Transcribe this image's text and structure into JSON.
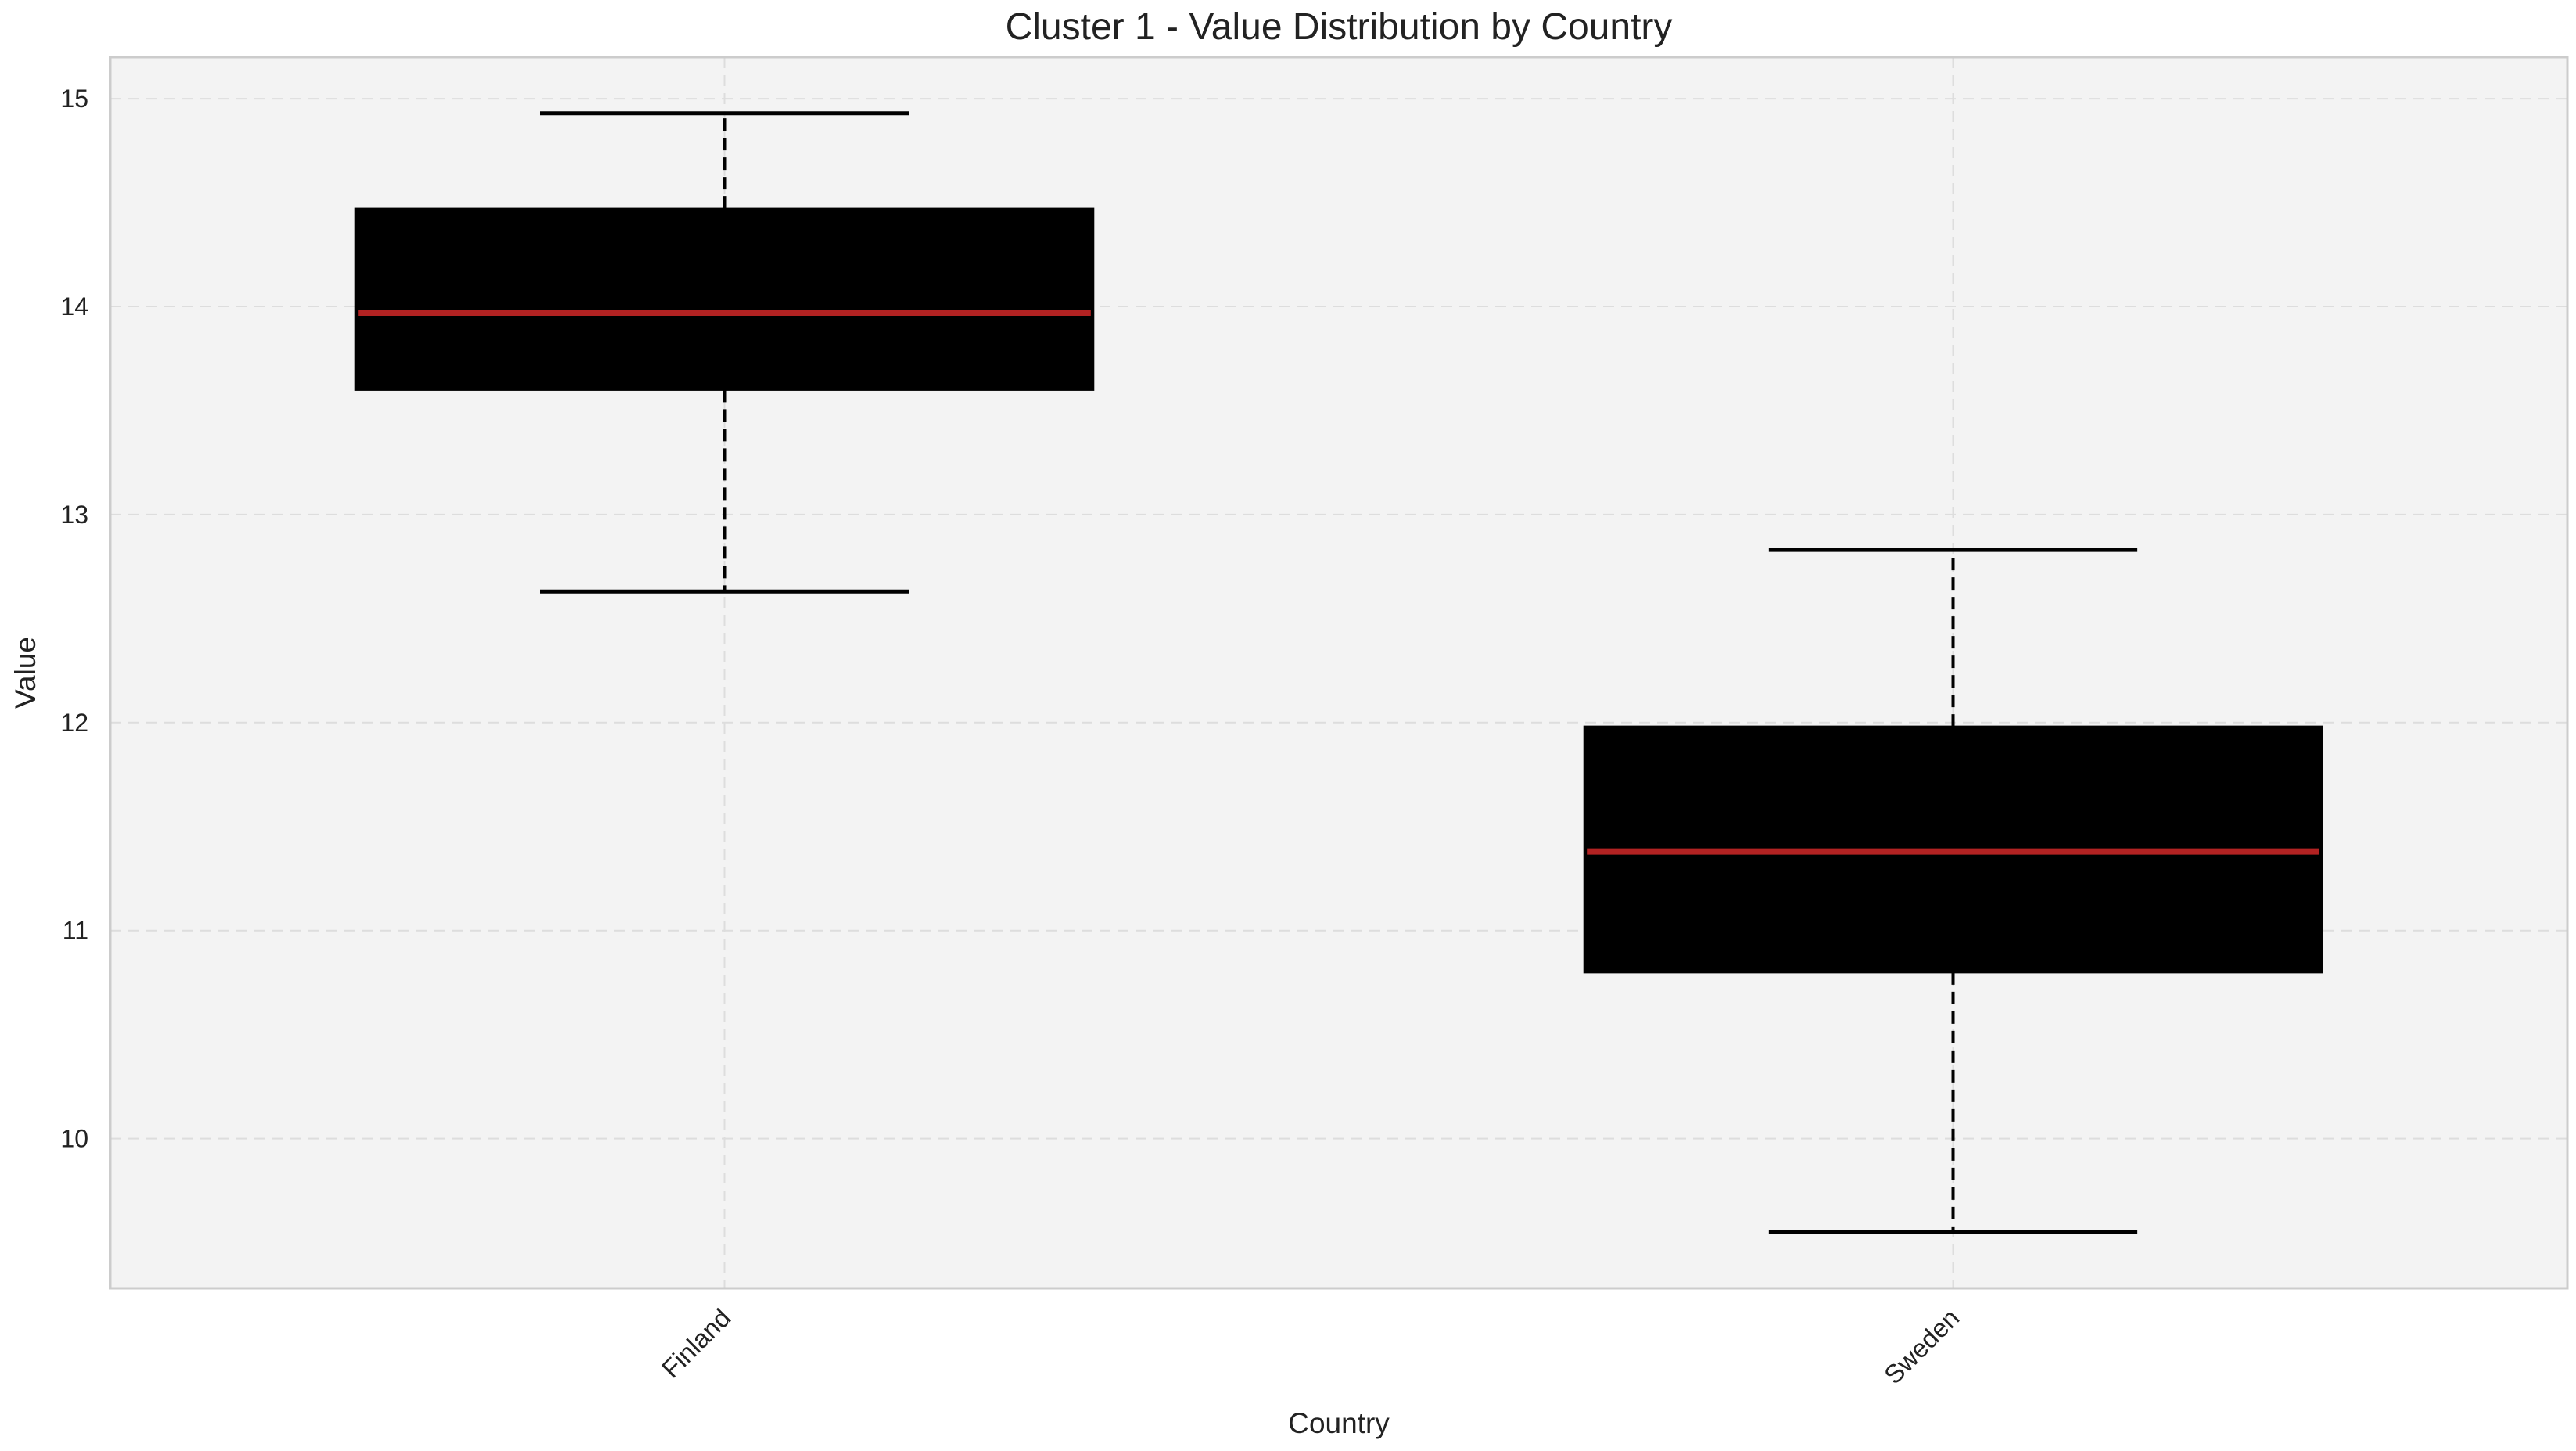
{
  "chart_data": {
    "type": "box",
    "title": "Cluster 1 - Value Distribution by Country",
    "xlabel": "Country",
    "ylabel": "Value",
    "categories": [
      "Finland",
      "Sweden"
    ],
    "boxes": [
      {
        "category": "Finland",
        "whisker_low": 12.63,
        "q1": 13.6,
        "median": 13.97,
        "q3": 14.47,
        "whisker_high": 14.93
      },
      {
        "category": "Sweden",
        "whisker_low": 9.55,
        "q1": 10.8,
        "median": 11.38,
        "q3": 11.98,
        "whisker_high": 12.83
      }
    ],
    "yticks": [
      10,
      11,
      12,
      13,
      14,
      15
    ],
    "ylim": [
      9.28,
      15.2
    ],
    "grid": true,
    "legend": "none",
    "colors": {
      "plot_background": "#f3f3f3",
      "box_fill": "#000000",
      "median_line": "#b22222",
      "whisker": "#000000",
      "grid": "#dddddd",
      "frame": "#cccccc",
      "text": "#222222"
    }
  }
}
